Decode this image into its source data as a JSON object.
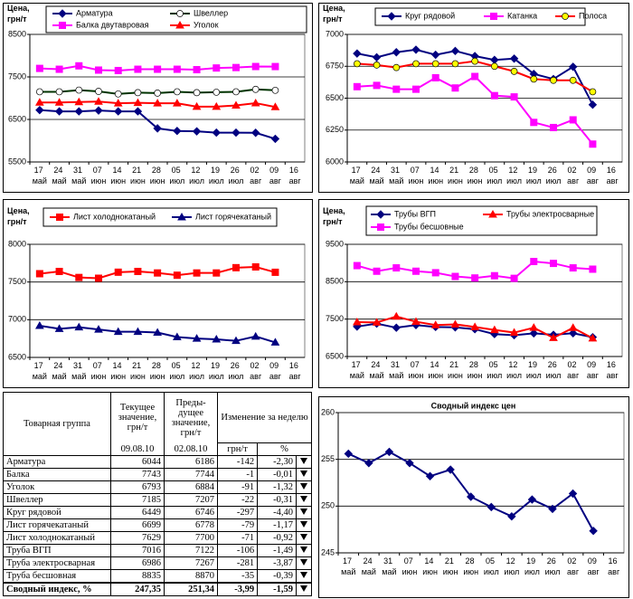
{
  "chart_data": [
    {
      "type": "line",
      "ylabel": "Цена, грн/т",
      "categories": [
        "17 май",
        "24 май",
        "31 май",
        "07 июн",
        "14 июн",
        "21 июн",
        "28 июн",
        "05 июл",
        "12 июл",
        "19 июл",
        "26 июл",
        "02 авг",
        "09 авг",
        "16 авг"
      ],
      "ylim": [
        5500,
        8500
      ],
      "yticks": [
        5500,
        6500,
        7500,
        8500
      ],
      "grid": true,
      "legend": "top",
      "legend_columns": 2,
      "series": [
        {
          "name": "Арматура",
          "color": "#000080",
          "marker": "diamond",
          "values": [
            6720,
            6690,
            6690,
            6710,
            6690,
            6690,
            6290,
            6230,
            6220,
            6190,
            6190,
            6186,
            6044,
            null
          ]
        },
        {
          "name": "Швеллер",
          "color": "#003300",
          "marker": "circle",
          "marker_fill": "#ffffff",
          "values": [
            7150,
            7150,
            7190,
            7160,
            7100,
            7130,
            7120,
            7150,
            7130,
            7140,
            7150,
            7207,
            7185,
            null
          ]
        },
        {
          "name": "Балка двутавровая",
          "color": "#ff00ff",
          "marker": "square",
          "values": [
            7700,
            7680,
            7760,
            7660,
            7650,
            7680,
            7680,
            7680,
            7670,
            7710,
            7720,
            7744,
            7743,
            null
          ]
        },
        {
          "name": "Уголок",
          "color": "#ff0000",
          "marker": "triangle",
          "values": [
            6900,
            6900,
            6910,
            6920,
            6880,
            6890,
            6880,
            6880,
            6800,
            6800,
            6830,
            6884,
            6793,
            null
          ]
        }
      ]
    },
    {
      "type": "line",
      "ylabel": "Цена, грн/т",
      "categories": [
        "17 май",
        "24 май",
        "31 май",
        "07 июн",
        "14 июн",
        "21 июн",
        "28 июн",
        "05 июл",
        "12 июл",
        "19 июл",
        "26 июл",
        "02 авг",
        "09 авг",
        "16 авг"
      ],
      "ylim": [
        6000,
        7000
      ],
      "yticks": [
        6000,
        6250,
        6500,
        6750,
        7000
      ],
      "grid": true,
      "legend": "top",
      "legend_columns": 3,
      "series": [
        {
          "name": "Круг рядовой",
          "color": "#000080",
          "marker": "diamond",
          "values": [
            6850,
            6820,
            6860,
            6880,
            6840,
            6870,
            6830,
            6800,
            6810,
            6690,
            6650,
            6746,
            6449,
            null
          ]
        },
        {
          "name": "Катанка",
          "color": "#ff00ff",
          "marker": "square",
          "values": [
            6590,
            6600,
            6570,
            6570,
            6660,
            6580,
            6670,
            6520,
            6510,
            6310,
            6270,
            6330,
            6140,
            null
          ]
        },
        {
          "name": "Полоса",
          "color": "#ff0000",
          "marker": "circle",
          "marker_fill": "#ffff00",
          "values": [
            6770,
            6760,
            6740,
            6770,
            6770,
            6770,
            6790,
            6750,
            6710,
            6650,
            6640,
            6640,
            6550,
            null
          ]
        }
      ]
    },
    {
      "type": "line",
      "ylabel": "Цена, грн/т",
      "categories": [
        "17 май",
        "24 май",
        "31 май",
        "07 июн",
        "14 июн",
        "21 июн",
        "28 июн",
        "05 июл",
        "12 июл",
        "19 июл",
        "26 июл",
        "02 авг",
        "09 авг",
        "16 авг"
      ],
      "ylim": [
        6500,
        8000
      ],
      "yticks": [
        6500,
        7000,
        7500,
        8000
      ],
      "grid": true,
      "legend": "top",
      "legend_columns": 2,
      "series": [
        {
          "name": "Лист холоднокатаный",
          "color": "#ff0000",
          "marker": "square",
          "values": [
            7610,
            7640,
            7560,
            7550,
            7630,
            7640,
            7620,
            7590,
            7620,
            7620,
            7690,
            7700,
            7629,
            null
          ]
        },
        {
          "name": "Лист горячекатаный",
          "color": "#000080",
          "marker": "triangle",
          "values": [
            6920,
            6880,
            6900,
            6870,
            6840,
            6840,
            6830,
            6770,
            6750,
            6740,
            6720,
            6778,
            6699,
            null
          ]
        }
      ]
    },
    {
      "type": "line",
      "ylabel": "Цена, грн/т",
      "categories": [
        "17 май",
        "24 май",
        "31 май",
        "07 июн",
        "14 июн",
        "21 июн",
        "28 июн",
        "05 июл",
        "12 июл",
        "19 июл",
        "26 июл",
        "02 авг",
        "09 авг",
        "16 авг"
      ],
      "ylim": [
        6500,
        9500
      ],
      "yticks": [
        6500,
        7500,
        8500,
        9500
      ],
      "grid": true,
      "legend": "top",
      "legend_columns": 2,
      "series": [
        {
          "name": "Трубы ВГП",
          "color": "#000080",
          "marker": "diamond",
          "values": [
            7300,
            7380,
            7270,
            7340,
            7290,
            7280,
            7230,
            7100,
            7070,
            7120,
            7080,
            7122,
            7016,
            null
          ]
        },
        {
          "name": "Трубы электросварные",
          "color": "#ff0000",
          "marker": "triangle",
          "values": [
            7420,
            7410,
            7570,
            7430,
            7340,
            7360,
            7290,
            7210,
            7140,
            7270,
            7000,
            7267,
            6986,
            null
          ]
        },
        {
          "name": "Трубы бесшовные",
          "color": "#ff00ff",
          "marker": "square",
          "values": [
            8930,
            8780,
            8870,
            8780,
            8740,
            8640,
            8600,
            8660,
            8590,
            9040,
            8990,
            8870,
            8835,
            null
          ]
        }
      ]
    },
    {
      "type": "line",
      "title": "Сводный индекс цен",
      "categories": [
        "17 май",
        "24 май",
        "31 май",
        "07 июн",
        "14 июн",
        "21 июн",
        "28 июн",
        "05 июл",
        "12 июл",
        "19 июл",
        "26 июл",
        "02 авг",
        "09 авг",
        "16 авг"
      ],
      "ylim": [
        245,
        260
      ],
      "yticks": [
        245,
        250,
        255,
        260
      ],
      "grid": true,
      "color": "#000080",
      "marker": "diamond",
      "values": [
        255.6,
        254.6,
        255.8,
        254.6,
        253.2,
        253.9,
        251.0,
        249.9,
        248.9,
        250.7,
        249.7,
        251.34,
        247.35,
        null
      ]
    }
  ],
  "table": {
    "headers": [
      "Товарная группа",
      "Текущее значение, грн/т",
      "Преды-дущее значение, грн/т",
      "Изменение за неделю"
    ],
    "subheaders": [
      "09.08.10",
      "02.08.10",
      "грн/т",
      "%"
    ],
    "rows": [
      [
        "Арматура",
        "6044",
        "6186",
        "-142",
        "-2,30"
      ],
      [
        "Балка",
        "7743",
        "7744",
        "-1",
        "-0,01"
      ],
      [
        "Уголок",
        "6793",
        "6884",
        "-91",
        "-1,32"
      ],
      [
        "Швеллер",
        "7185",
        "7207",
        "-22",
        "-0,31"
      ],
      [
        "Круг рядовой",
        "6449",
        "6746",
        "-297",
        "-4,40"
      ],
      [
        "Лист горячекатаный",
        "6699",
        "6778",
        "-79",
        "-1,17"
      ],
      [
        "Лист холоднокатаный",
        "7629",
        "7700",
        "-71",
        "-0,92"
      ],
      [
        "Труба ВГП",
        "7016",
        "7122",
        "-106",
        "-1,49"
      ],
      [
        "Труба электросварная",
        "6986",
        "7267",
        "-281",
        "-3,87"
      ],
      [
        "Труба бесшовная",
        "8835",
        "8870",
        "-35",
        "-0,39"
      ],
      [
        "Сводный индекс, %",
        "247,35",
        "251,34",
        "-3,99",
        "-1,59"
      ]
    ]
  }
}
